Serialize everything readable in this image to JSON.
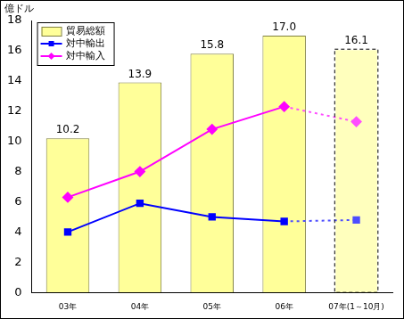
{
  "chart_data": {
    "type": "bar",
    "ylabel": "億ドル",
    "categories": [
      "03年",
      "04年",
      "05年",
      "06年",
      "07年(1～10月)"
    ],
    "series": [
      {
        "name": "貿易総額",
        "type": "bar",
        "color": "#ffff99",
        "values": [
          10.2,
          13.9,
          15.8,
          17.0,
          16.1
        ],
        "value_labels": [
          "10.2",
          "13.9",
          "15.8",
          "17.0",
          "16.1"
        ],
        "data_labels": true
      },
      {
        "name": "対中輸出",
        "type": "line",
        "color": "#0000ff",
        "marker": "square",
        "values": [
          4.0,
          5.9,
          5.0,
          4.7,
          4.8
        ]
      },
      {
        "name": "対中輸入",
        "type": "line",
        "color": "#ff00ff",
        "marker": "diamond",
        "values": [
          6.3,
          8.0,
          10.8,
          12.3,
          11.3
        ]
      }
    ],
    "ylim": [
      0,
      18
    ],
    "yticks": [
      0,
      2,
      4,
      6,
      8,
      10,
      12,
      14,
      16,
      18
    ],
    "grid": false,
    "legend": "top-left"
  }
}
